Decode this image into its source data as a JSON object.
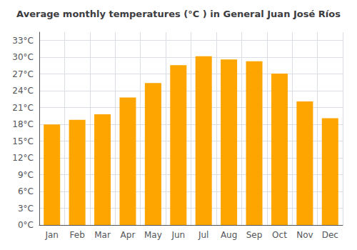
{
  "chart_data": {
    "type": "bar",
    "title": "Average monthly temperatures (°C ) in General Juan José Ríos",
    "categories": [
      "Jan",
      "Feb",
      "Mar",
      "Apr",
      "May",
      "Jun",
      "Jul",
      "Aug",
      "Sep",
      "Oct",
      "Nov",
      "Dec"
    ],
    "values": [
      18.0,
      18.8,
      19.8,
      22.8,
      25.4,
      28.6,
      30.2,
      29.6,
      29.3,
      27.1,
      22.1,
      19.1
    ],
    "color": "#FFA500",
    "ylim": [
      0,
      34.5
    ],
    "yticks": [
      {
        "value": 0,
        "label": "0°C"
      },
      {
        "value": 3,
        "label": "3°C"
      },
      {
        "value": 6,
        "label": "6°C"
      },
      {
        "value": 9,
        "label": "9°C"
      },
      {
        "value": 12,
        "label": "12°C"
      },
      {
        "value": 15,
        "label": "15°C"
      },
      {
        "value": 18,
        "label": "18°C"
      },
      {
        "value": 21,
        "label": "21°C"
      },
      {
        "value": 24,
        "label": "24°C"
      },
      {
        "value": 27,
        "label": "27°C"
      },
      {
        "value": 30,
        "label": "30°C"
      },
      {
        "value": 33,
        "label": "33°C"
      }
    ],
    "grid": true
  }
}
